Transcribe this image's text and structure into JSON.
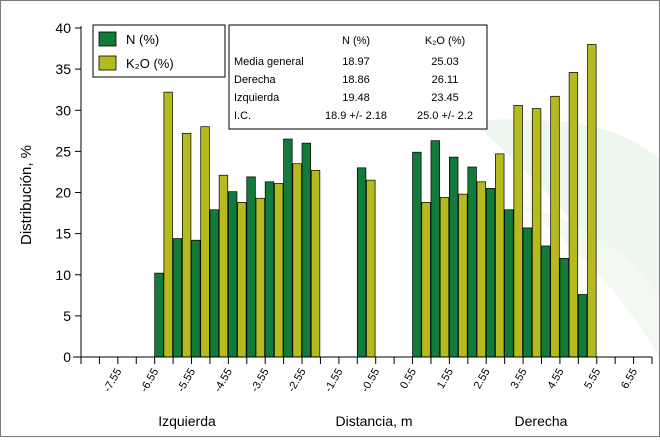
{
  "chart_data": {
    "type": "bar",
    "title": "",
    "xlabel": "Distancia, m",
    "ylabel": "Distribución, %",
    "ylim": [
      0,
      40
    ],
    "yticks": [
      "0",
      "5",
      "10",
      "15",
      "20",
      "25",
      "30",
      "35",
      "40"
    ],
    "x_tick_labels": [
      "-7.55",
      "-6.55",
      "-5.55",
      "-4.55",
      "-3.55",
      "-2.55",
      "-1.55",
      "-0.55",
      "0.55",
      "1.55",
      "2.55",
      "3.55",
      "4.55",
      "5.55",
      "6.55"
    ],
    "side_labels": {
      "left": "Izquierda",
      "right": "Derecha"
    },
    "categories": [
      "-8.05",
      "-7.55",
      "-7.05",
      "-6.55",
      "-6.05",
      "-5.55",
      "-5.05",
      "-4.55",
      "-4.05",
      "-3.55",
      "-3.05",
      "-2.55",
      "-2.05",
      "-1.55",
      "-1.05",
      "-0.55",
      "-0.05",
      "0.55",
      "1.05",
      "1.55",
      "2.05",
      "2.55",
      "3.05",
      "3.55",
      "4.05",
      "4.55",
      "5.05",
      "5.55",
      "6.05",
      "6.55",
      "7.05"
    ],
    "series": [
      {
        "name": "N (%)",
        "color": "#127a3a",
        "values": [
          null,
          null,
          null,
          null,
          10.2,
          14.4,
          14.2,
          17.9,
          20.1,
          21.9,
          21.3,
          26.5,
          26.0,
          null,
          null,
          23.0,
          null,
          null,
          24.9,
          26.3,
          24.3,
          23.1,
          20.5,
          17.9,
          15.7,
          13.5,
          12.0,
          7.6,
          null,
          null,
          null
        ]
      },
      {
        "name": "K₂O (%)",
        "color": "#b5ba1f",
        "values": [
          null,
          null,
          null,
          null,
          32.2,
          27.2,
          28.0,
          22.1,
          18.8,
          19.3,
          21.1,
          23.5,
          22.7,
          null,
          null,
          21.5,
          null,
          null,
          18.8,
          19.4,
          19.8,
          21.3,
          24.7,
          30.6,
          30.2,
          31.7,
          34.6,
          38.0,
          null,
          null,
          null
        ]
      }
    ],
    "legend": {
      "position": "top-left",
      "entries": [
        "N (%)",
        "K2O (%)"
      ]
    },
    "stats_table": {
      "headers": [
        "",
        "N (%)",
        "K2O (%)"
      ],
      "rows": [
        [
          "Media general",
          "18.97",
          "25.03"
        ],
        [
          "Derecha",
          "18.86",
          "26.11"
        ],
        [
          "Izquierda",
          "19.48",
          "23.45"
        ],
        [
          "I.C.",
          "18.9 +/- 2.18",
          "25.0 +/- 2.2"
        ]
      ]
    },
    "grid": false
  }
}
